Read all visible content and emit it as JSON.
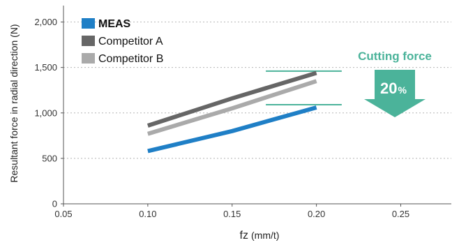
{
  "chart_data": {
    "type": "line",
    "xlabel_main": "fz",
    "xlabel_unit": "(mm/t)",
    "ylabel": "Resultant force in radial direction (N)",
    "x_ticks": [
      "0.05",
      "0.10",
      "0.15",
      "0.20",
      "0.25"
    ],
    "x_tick_values": [
      0.05,
      0.1,
      0.15,
      0.2,
      0.25
    ],
    "y_ticks": [
      "0",
      "500",
      "1,000",
      "1,500",
      "2,000"
    ],
    "y_tick_values": [
      0,
      500,
      1000,
      1500,
      2000
    ],
    "xlim": [
      0.05,
      0.28
    ],
    "ylim": [
      0,
      2150
    ],
    "grid": "horizontal dotted",
    "legend_position": "top-left",
    "series": [
      {
        "name": "MEAS",
        "color": "#1f7fc6",
        "bold": true,
        "x": [
          0.1,
          0.15,
          0.2
        ],
        "y": [
          580,
          800,
          1060
        ]
      },
      {
        "name": "Competitor A",
        "color": "#666666",
        "bold": false,
        "x": [
          0.1,
          0.15,
          0.2
        ],
        "y": [
          860,
          1160,
          1440
        ]
      },
      {
        "name": "Competitor B",
        "color": "#aaaaaa",
        "bold": false,
        "x": [
          0.1,
          0.15,
          0.2
        ],
        "y": [
          770,
          1050,
          1350
        ]
      }
    ],
    "annotation": {
      "title": "Cutting force",
      "value": "20",
      "unit": "%",
      "color": "#4bb39a",
      "upper_level": 1460,
      "lower_level": 1090,
      "x_from": 0.17,
      "x_to": 0.215
    }
  }
}
